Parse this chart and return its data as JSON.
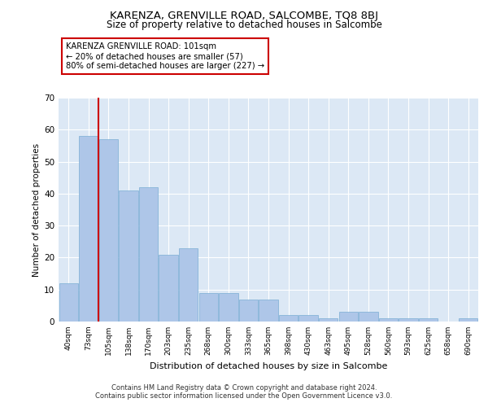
{
  "title": "KARENZA, GRENVILLE ROAD, SALCOMBE, TQ8 8BJ",
  "subtitle": "Size of property relative to detached houses in Salcombe",
  "xlabel": "Distribution of detached houses by size in Salcombe",
  "ylabel": "Number of detached properties",
  "categories": [
    "40sqm",
    "73sqm",
    "105sqm",
    "138sqm",
    "170sqm",
    "203sqm",
    "235sqm",
    "268sqm",
    "300sqm",
    "333sqm",
    "365sqm",
    "398sqm",
    "430sqm",
    "463sqm",
    "495sqm",
    "528sqm",
    "560sqm",
    "593sqm",
    "625sqm",
    "658sqm",
    "690sqm"
  ],
  "values": [
    12,
    58,
    57,
    41,
    42,
    21,
    23,
    9,
    9,
    7,
    7,
    2,
    2,
    1,
    3,
    3,
    1,
    1,
    1,
    0,
    1
  ],
  "bar_color": "#aec6e8",
  "bar_edge_color": "#7aadd4",
  "vline_color": "#cc0000",
  "annotation_text": "KARENZA GRENVILLE ROAD: 101sqm\n← 20% of detached houses are smaller (57)\n80% of semi-detached houses are larger (227) →",
  "annotation_box_color": "#ffffff",
  "annotation_box_edge": "#cc0000",
  "ylim": [
    0,
    70
  ],
  "yticks": [
    0,
    10,
    20,
    30,
    40,
    50,
    60,
    70
  ],
  "background_color": "#dce8f5",
  "footer_line1": "Contains HM Land Registry data © Crown copyright and database right 2024.",
  "footer_line2": "Contains public sector information licensed under the Open Government Licence v3.0."
}
